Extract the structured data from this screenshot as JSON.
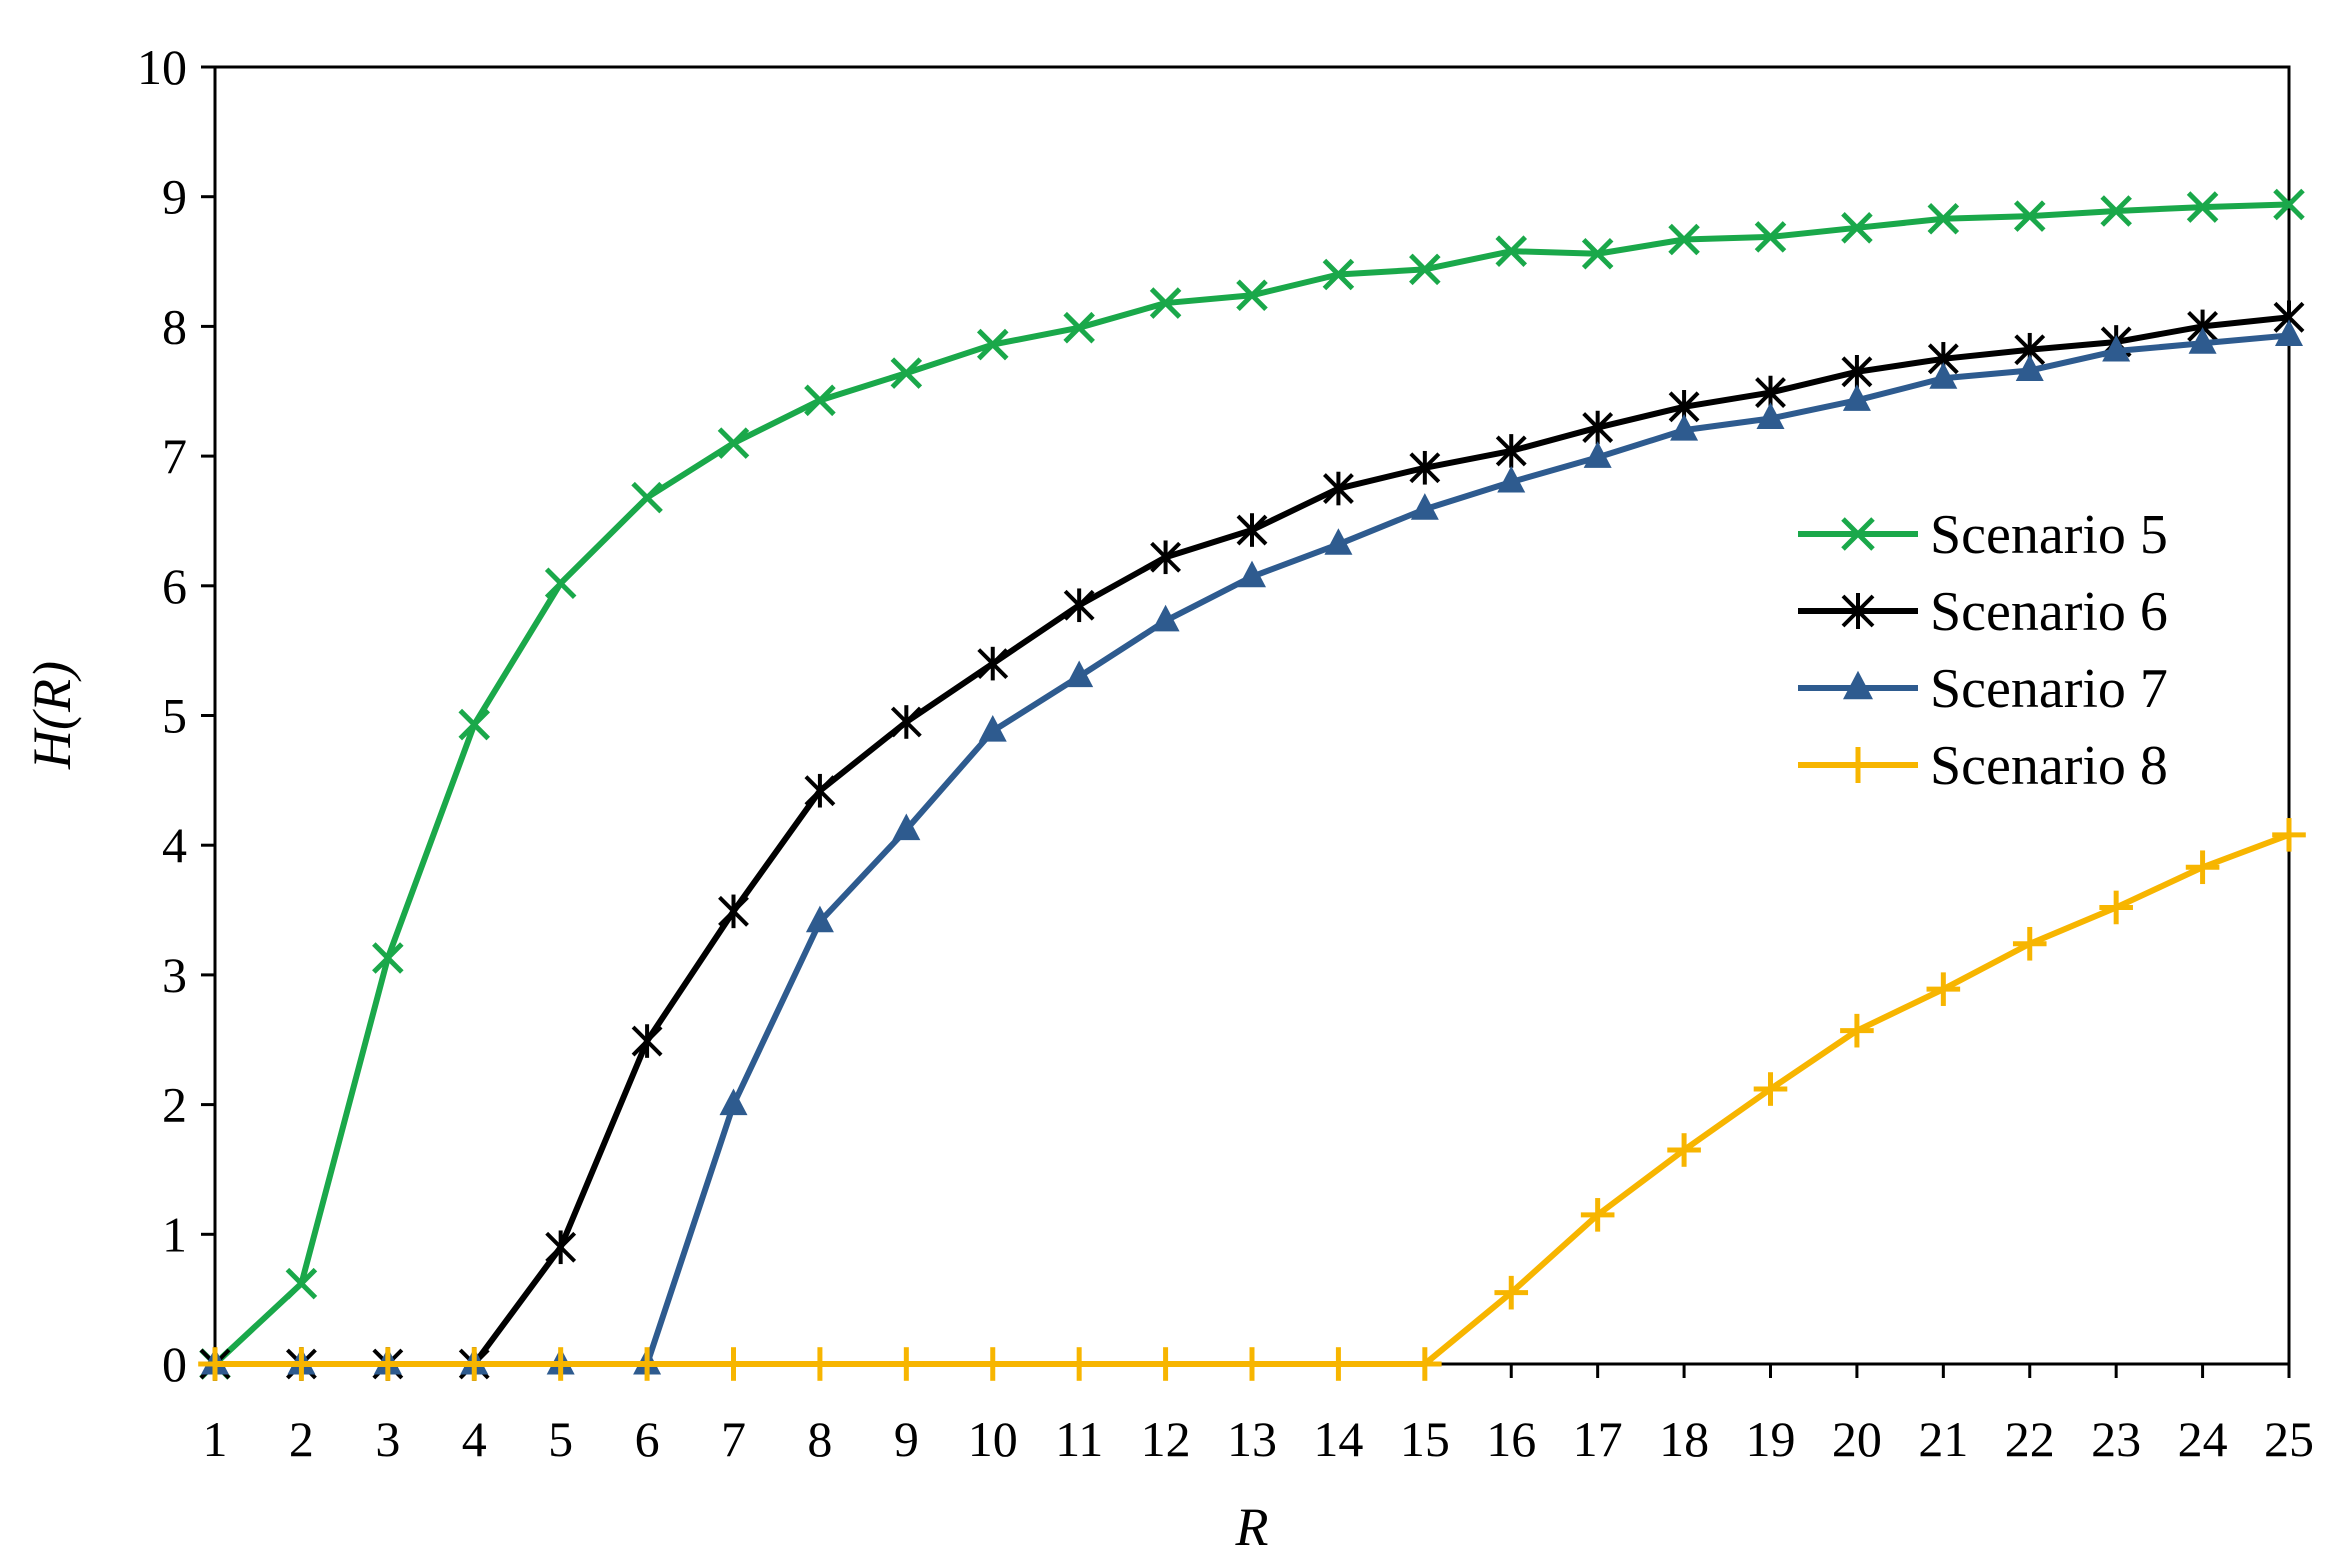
{
  "chart_data": {
    "type": "line",
    "title": "",
    "xlabel": "R",
    "ylabel": "H(R)",
    "x": [
      1,
      2,
      3,
      4,
      5,
      6,
      7,
      8,
      9,
      10,
      11,
      12,
      13,
      14,
      15,
      16,
      17,
      18,
      19,
      20,
      21,
      22,
      23,
      24,
      25
    ],
    "xlim": [
      1,
      25
    ],
    "ylim": [
      0,
      10
    ],
    "yticks": [
      "0",
      "1",
      "2",
      "3",
      "4",
      "5",
      "6",
      "7",
      "8",
      "9",
      "10"
    ],
    "xticks": [
      "1",
      "2",
      "3",
      "4",
      "5",
      "6",
      "7",
      "8",
      "9",
      "10",
      "11",
      "12",
      "13",
      "14",
      "15",
      "16",
      "17",
      "18",
      "19",
      "20",
      "21",
      "22",
      "23",
      "24",
      "25"
    ],
    "grid": false,
    "legend_position": "right",
    "series": [
      {
        "name": "Scenario 5",
        "color": "#1aa84a",
        "marker": "x",
        "values": [
          0,
          0.62,
          3.13,
          4.93,
          6.02,
          6.68,
          7.1,
          7.43,
          7.64,
          7.86,
          7.99,
          8.18,
          8.24,
          8.4,
          8.44,
          8.58,
          8.56,
          8.67,
          8.69,
          8.76,
          8.83,
          8.85,
          8.89,
          8.92,
          8.94
        ]
      },
      {
        "name": "Scenario 6",
        "color": "#000000",
        "marker": "star",
        "values": [
          0,
          0,
          0,
          0,
          0.9,
          2.49,
          3.49,
          4.42,
          4.95,
          5.4,
          5.85,
          6.22,
          6.43,
          6.75,
          6.91,
          7.04,
          7.22,
          7.38,
          7.49,
          7.65,
          7.75,
          7.82,
          7.88,
          8.0,
          8.07
        ]
      },
      {
        "name": "Scenario 7",
        "color": "#2e5b8f",
        "marker": "triangle",
        "values": [
          0,
          0,
          0,
          0,
          0,
          0,
          2.0,
          3.41,
          4.12,
          4.88,
          5.3,
          5.73,
          6.07,
          6.32,
          6.59,
          6.8,
          6.99,
          7.2,
          7.29,
          7.43,
          7.6,
          7.66,
          7.81,
          7.87,
          7.93
        ]
      },
      {
        "name": "Scenario 8",
        "color": "#f7b500",
        "marker": "plus",
        "values": [
          0,
          0,
          0,
          0,
          0,
          0,
          0,
          0,
          0,
          0,
          0,
          0,
          0,
          0,
          0,
          0.55,
          1.15,
          1.65,
          2.12,
          2.57,
          2.89,
          3.24,
          3.52,
          3.83,
          4.08
        ]
      }
    ]
  }
}
